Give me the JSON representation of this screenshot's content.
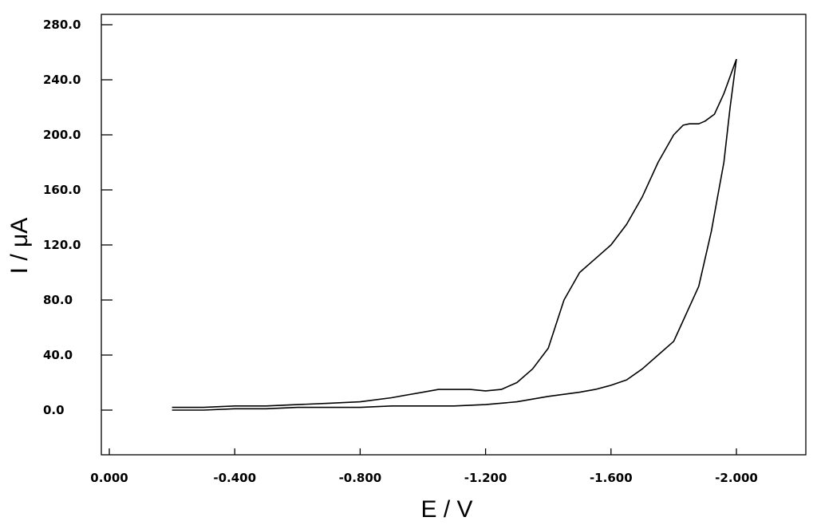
{
  "chart_data": {
    "type": "line",
    "title": "",
    "xlabel": "E / V",
    "ylabel": "I / μA",
    "xlim": [
      0.0,
      -2.25
    ],
    "ylim": [
      -35,
      285
    ],
    "x_direction": "reversed",
    "grid": false,
    "x_ticks": [
      0.0,
      -0.4,
      -0.8,
      -1.2,
      -1.6,
      -2.0
    ],
    "x_tick_labels": [
      "0.000",
      "-0.400",
      "-0.800",
      "-1.200",
      "-1.600",
      "-2.000"
    ],
    "y_ticks": [
      0,
      40,
      80,
      120,
      160,
      200,
      240,
      280
    ],
    "y_tick_labels": [
      "0.0",
      "40.0",
      "80.0",
      "120.0",
      "160.0",
      "200.0",
      "240.0",
      "280.0"
    ],
    "series": [
      {
        "curve": "forward-scan",
        "x": [
          -0.2,
          -0.3,
          -0.4,
          -0.5,
          -0.6,
          -0.7,
          -0.8,
          -0.9,
          -0.95,
          -1.0,
          -1.05,
          -1.1,
          -1.15,
          -1.2,
          -1.25,
          -1.3,
          -1.35,
          -1.4,
          -1.45,
          -1.5,
          -1.55,
          -1.6,
          -1.65,
          -1.7,
          -1.75,
          -1.8,
          -1.83,
          -1.85,
          -1.88,
          -1.9,
          -1.93,
          -1.96,
          -2.0
        ],
        "y": [
          2,
          2,
          3,
          3,
          4,
          5,
          6,
          9,
          11,
          13,
          15,
          15,
          15,
          14,
          15,
          20,
          30,
          45,
          80,
          100,
          110,
          120,
          135,
          155,
          180,
          200,
          207,
          208,
          208,
          210,
          215,
          230,
          255
        ]
      },
      {
        "curve": "reverse-scan",
        "x": [
          -2.0,
          -1.98,
          -1.96,
          -1.94,
          -1.92,
          -1.9,
          -1.88,
          -1.85,
          -1.82,
          -1.8,
          -1.75,
          -1.7,
          -1.65,
          -1.6,
          -1.55,
          -1.5,
          -1.4,
          -1.3,
          -1.2,
          -1.1,
          -1.0,
          -0.9,
          -0.8,
          -0.7,
          -0.6,
          -0.5,
          -0.4,
          -0.3,
          -0.2
        ],
        "y": [
          255,
          220,
          180,
          155,
          130,
          110,
          90,
          75,
          60,
          50,
          40,
          30,
          22,
          18,
          15,
          13,
          10,
          6,
          4,
          3,
          3,
          3,
          2,
          2,
          2,
          1,
          1,
          0,
          0
        ]
      }
    ]
  }
}
